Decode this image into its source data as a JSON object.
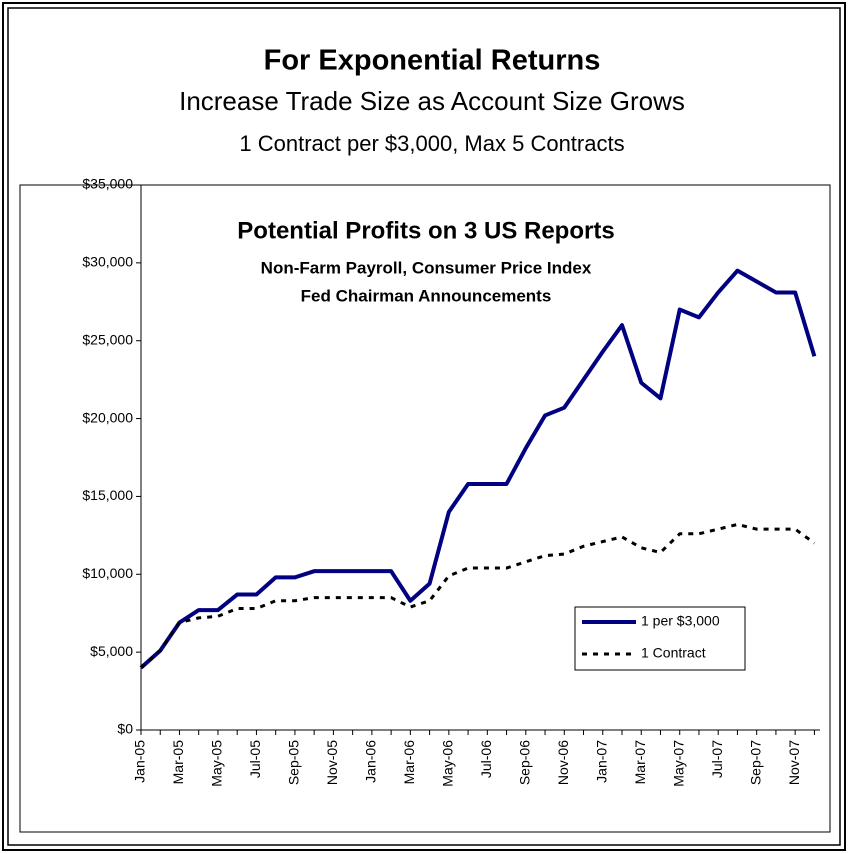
{
  "chart_data": {
    "type": "line",
    "title": "For Exponential Returns",
    "subtitle": [
      "Increase Trade Size as Account Size Grows",
      "1 Contract per $3,000, Max 5 Contracts"
    ],
    "annotations": [
      "Potential Profits on 3 US Reports",
      "Non-Farm Payroll, Consumer Price Index",
      "Fed Chairman Announcements"
    ],
    "categories": [
      "Jan-05",
      null,
      "Mar-05",
      null,
      "May-05",
      null,
      "Jul-05",
      null,
      "Sep-05",
      null,
      "Nov-05",
      null,
      "Jan-06",
      null,
      "Mar-06",
      null,
      "May-06",
      null,
      "Jul-06",
      null,
      "Sep-06",
      null,
      "Nov-06",
      null,
      "Jan-07",
      null,
      "Mar-07",
      null,
      "May-07",
      null,
      "Jul-07",
      null,
      "Sep-07",
      null,
      "Nov-07",
      null
    ],
    "series": [
      {
        "name": "1 per $3,000",
        "color": "#000080",
        "dash": false,
        "values": [
          4000,
          5100,
          6900,
          7700,
          7700,
          8700,
          8700,
          9800,
          9800,
          10200,
          10200,
          10200,
          10200,
          10200,
          8300,
          9400,
          14000,
          15800,
          15800,
          15800,
          18100,
          20200,
          20700,
          22500,
          24300,
          26000,
          22300,
          21300,
          27000,
          26500,
          28100,
          29500,
          28800,
          28100,
          28100,
          24000
        ]
      },
      {
        "name": "1 Contract",
        "color": "#000000",
        "dash": true,
        "values": [
          4000,
          5100,
          6900,
          7200,
          7300,
          7800,
          7800,
          8300,
          8300,
          8500,
          8500,
          8500,
          8500,
          8500,
          7900,
          8300,
          9900,
          10400,
          10400,
          10400,
          10800,
          11200,
          11300,
          11800,
          12100,
          12400,
          11700,
          11400,
          12600,
          12600,
          12900,
          13200,
          12900,
          12900,
          12900,
          12000
        ]
      }
    ],
    "ylim": [
      0,
      35000
    ],
    "yticks": [
      {
        "value": 0,
        "label": "$0"
      },
      {
        "value": 5000,
        "label": "$5,000"
      },
      {
        "value": 10000,
        "label": "$10,000"
      },
      {
        "value": 15000,
        "label": "$15,000"
      },
      {
        "value": 20000,
        "label": "$20,000"
      },
      {
        "value": 25000,
        "label": "$25,000"
      },
      {
        "value": 30000,
        "label": "$30,000"
      },
      {
        "value": 35000,
        "label": "$35,000"
      }
    ],
    "grid": false
  }
}
